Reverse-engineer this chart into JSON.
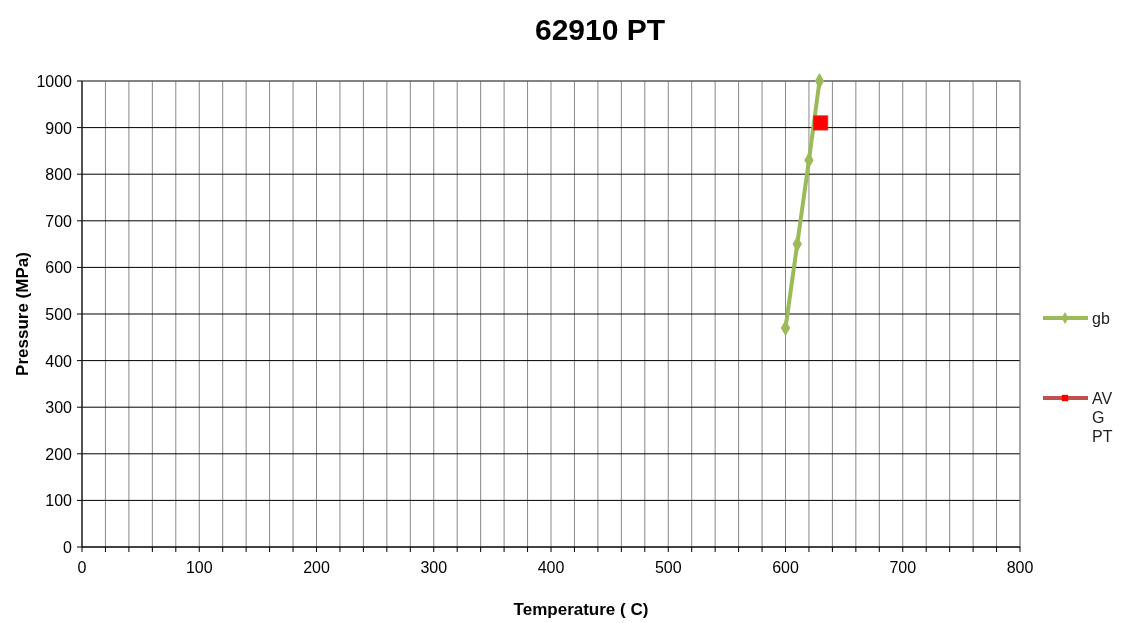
{
  "chart_data": {
    "type": "line",
    "title": "62910 PT",
    "xlabel": "Temperature ( C)",
    "ylabel": "Pressure (MPa)",
    "xlim": [
      0,
      800
    ],
    "xticks": [
      0,
      {
        "value": 20,
        "label": null
      },
      {
        "value": 40,
        "label": null
      },
      {
        "value": 60,
        "label": null
      },
      {
        "value": 80,
        "label": null
      },
      100,
      {
        "value": 120,
        "label": null
      },
      {
        "value": 140,
        "label": null
      },
      {
        "value": 160,
        "label": null
      },
      {
        "value": 180,
        "label": null
      },
      200,
      {
        "value": 220,
        "label": null
      },
      {
        "value": 240,
        "label": null
      },
      {
        "value": 260,
        "label": null
      },
      {
        "value": 280,
        "label": null
      },
      300,
      {
        "value": 320,
        "label": null
      },
      {
        "value": 340,
        "label": null
      },
      {
        "value": 360,
        "label": null
      },
      {
        "value": 380,
        "label": null
      },
      400,
      {
        "value": 420,
        "label": null
      },
      {
        "value": 440,
        "label": null
      },
      {
        "value": 460,
        "label": null
      },
      {
        "value": 480,
        "label": null
      },
      500,
      {
        "value": 520,
        "label": null
      },
      {
        "value": 540,
        "label": null
      },
      {
        "value": 560,
        "label": null
      },
      {
        "value": 580,
        "label": null
      },
      600,
      {
        "value": 620,
        "label": null
      },
      {
        "value": 640,
        "label": null
      },
      {
        "value": 660,
        "label": null
      },
      {
        "value": 680,
        "label": null
      },
      700,
      {
        "value": 720,
        "label": null
      },
      {
        "value": 740,
        "label": null
      },
      {
        "value": 760,
        "label": null
      },
      {
        "value": 780,
        "label": null
      },
      800
    ],
    "ylim": [
      0,
      1000
    ],
    "yticks": [
      0,
      100,
      200,
      300,
      400,
      500,
      600,
      700,
      800,
      900,
      1000
    ],
    "grid": true,
    "legend": "right",
    "series": [
      {
        "name": "gb",
        "color": "#9bbb59",
        "x": [
          600,
          610,
          620,
          629
        ],
        "values": [
          470,
          650,
          830,
          1000
        ],
        "marker": "diamond"
      },
      {
        "name": "AVG PT",
        "color": "#ff0000",
        "x": [
          630
        ],
        "values": [
          910
        ],
        "marker": "square"
      }
    ]
  }
}
